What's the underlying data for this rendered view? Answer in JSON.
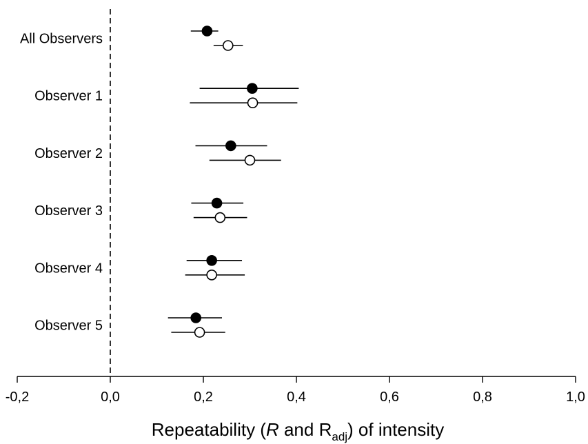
{
  "chart_data": {
    "type": "scatter",
    "orientation": "horizontal",
    "categories": [
      "All Observers",
      "Observer 1",
      "Observer 2",
      "Observer 3",
      "Observer 4",
      "Observer 5"
    ],
    "series": [
      {
        "marker": "filled-circle",
        "color": "#000000",
        "points": [
          {
            "category": "All Observers",
            "value": 0.208,
            "ci": [
              0.173,
              0.232
            ]
          },
          {
            "category": "Observer 1",
            "value": 0.305,
            "ci": [
              0.192,
              0.405
            ]
          },
          {
            "category": "Observer 2",
            "value": 0.259,
            "ci": [
              0.183,
              0.337
            ]
          },
          {
            "category": "Observer 3",
            "value": 0.229,
            "ci": [
              0.174,
              0.286
            ]
          },
          {
            "category": "Observer 4",
            "value": 0.218,
            "ci": [
              0.164,
              0.283
            ]
          },
          {
            "category": "Observer 5",
            "value": 0.184,
            "ci": [
              0.124,
              0.24
            ]
          }
        ]
      },
      {
        "marker": "open-circle",
        "color": "#000000",
        "points": [
          {
            "category": "All Observers",
            "value": 0.253,
            "ci": [
              0.222,
              0.285
            ]
          },
          {
            "category": "Observer 1",
            "value": 0.306,
            "ci": [
              0.171,
              0.402
            ]
          },
          {
            "category": "Observer 2",
            "value": 0.3,
            "ci": [
              0.213,
              0.367
            ]
          },
          {
            "category": "Observer 3",
            "value": 0.236,
            "ci": [
              0.179,
              0.294
            ]
          },
          {
            "category": "Observer 4",
            "value": 0.218,
            "ci": [
              0.161,
              0.289
            ]
          },
          {
            "category": "Observer 5",
            "value": 0.192,
            "ci": [
              0.131,
              0.247
            ]
          }
        ]
      }
    ],
    "xlabel": {
      "before": "Repeatability (",
      "italic": "R",
      "middle": " and R",
      "subscript": "adj",
      "after": ") of intensity"
    },
    "xlim": [
      -0.2,
      1.0
    ],
    "xticks": [
      -0.2,
      0.0,
      0.2,
      0.4,
      0.6,
      0.8,
      1.0
    ],
    "xtick_labels": [
      "-0,2",
      "0,0",
      "0,2",
      "0,4",
      "0,6",
      "0,8",
      "1,0"
    ],
    "reference_line": {
      "x": 0.0,
      "style": "dashed"
    },
    "grid": false,
    "legend": "none"
  }
}
